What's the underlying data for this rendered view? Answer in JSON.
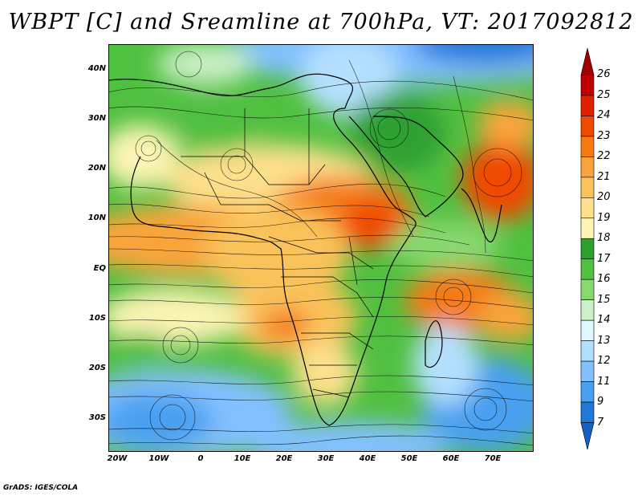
{
  "title": "WBPT [C] and Sreamline at 700hPa, VT: 2017092812",
  "footer": "GrADS: IGES/COLA",
  "map": {
    "variable": "WBPT [C]",
    "level": "700hPa",
    "valid_time": "2017092812",
    "lat_labels": [
      "40N",
      "30N",
      "20N",
      "10N",
      "EQ",
      "10S",
      "20S",
      "30S"
    ],
    "lon_labels": [
      "20W",
      "10W",
      "0",
      "10E",
      "20E",
      "30E",
      "40E",
      "50E",
      "60E",
      "70E"
    ]
  },
  "colorbar": {
    "labels": [
      "26",
      "25",
      "24",
      "23",
      "22",
      "21",
      "20",
      "19",
      "18",
      "17",
      "16",
      "15",
      "14",
      "13",
      "12",
      "11",
      "9",
      "7"
    ],
    "colors": [
      "#a00000",
      "#c00000",
      "#e01e00",
      "#f04a00",
      "#f57a14",
      "#f9a43a",
      "#fac25a",
      "#fde08c",
      "#fcf4b4",
      "#2fa030",
      "#50c040",
      "#88d870",
      "#ccf0c8",
      "#e0f8ff",
      "#b4e0ff",
      "#82c0ff",
      "#4aa0f0",
      "#2078d8",
      "#1460c8"
    ]
  }
}
